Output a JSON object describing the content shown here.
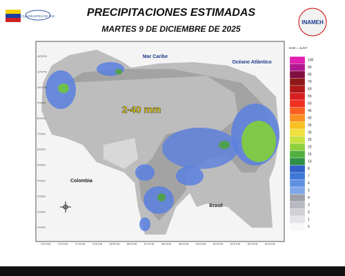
{
  "header": {
    "title": "PRECIPITACIONES ESTIMADAS",
    "subtitle": "MARTES 9 DE DICIEMBRE DE 2025",
    "logo": "INAMEH",
    "left_logo": "CUADRANTES DE PAZ"
  },
  "map": {
    "labels": {
      "amount": "2-40 mm",
      "sea": "Mar Caribe",
      "ocean": "Océano Atlántico",
      "west": "Colombia",
      "south": "Brasil"
    },
    "lat_labels": [
      "12°0'0\"N",
      "11°0'0\"N",
      "10°0'0\"N",
      "9°0'0\"N",
      "8°0'0\"N",
      "7°0'0\"N",
      "6°0'0\"N",
      "5°0'0\"N",
      "4°0'0\"N",
      "3°0'0\"N",
      "2°0'0\"N",
      "1°0'0\"N"
    ],
    "lon_labels": [
      "73°0'0\"W",
      "72°0'0\"W",
      "71°0'0\"W",
      "70°0'0\"W",
      "69°0'0\"W",
      "68°0'0\"W",
      "67°0'0\"W",
      "66°0'0\"W",
      "65°0'0\"W",
      "64°0'0\"W",
      "63°0'0\"W",
      "62°0'0\"W",
      "61°0'0\"W",
      "60°0'0\"W"
    ]
  },
  "legend": {
    "title": "1mm = 1L/m²",
    "items": [
      {
        "value": "100",
        "color": "#e020b0"
      },
      {
        "value": "90",
        "color": "#b01890"
      },
      {
        "value": "80",
        "color": "#801040"
      },
      {
        "value": "70",
        "color": "#901818"
      },
      {
        "value": "60",
        "color": "#b01818"
      },
      {
        "value": "55",
        "color": "#d82020"
      },
      {
        "value": "50",
        "color": "#f03020"
      },
      {
        "value": "45",
        "color": "#f86020"
      },
      {
        "value": "40",
        "color": "#f89020"
      },
      {
        "value": "35",
        "color": "#f8c020"
      },
      {
        "value": "30",
        "color": "#f0e040"
      },
      {
        "value": "25",
        "color": "#c8e040"
      },
      {
        "value": "20",
        "color": "#90d040"
      },
      {
        "value": "15",
        "color": "#50b040"
      },
      {
        "value": "10",
        "color": "#309048"
      },
      {
        "value": "8",
        "color": "#3060c8"
      },
      {
        "value": "7",
        "color": "#4078d8"
      },
      {
        "value": "6",
        "color": "#6090e0"
      },
      {
        "value": "5",
        "color": "#80a8e8"
      },
      {
        "value": "4",
        "color": "#a0a0a8"
      },
      {
        "value": "3",
        "color": "#b8b8c0"
      },
      {
        "value": "2",
        "color": "#d0d0d4"
      },
      {
        "value": "1",
        "color": "#e4e4e8"
      },
      {
        "value": "0",
        "color": "#f8f8f8"
      }
    ]
  }
}
